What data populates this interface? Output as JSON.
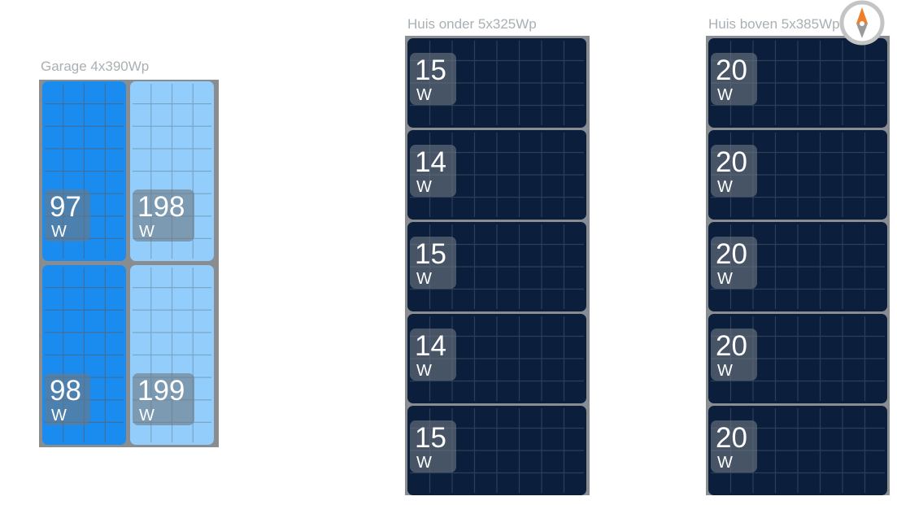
{
  "groups": [
    {
      "title": "Garage 4x390Wp",
      "panels": [
        {
          "value": 97,
          "unit": "W"
        },
        {
          "value": 198,
          "unit": "W"
        },
        {
          "value": 98,
          "unit": "W"
        },
        {
          "value": 199,
          "unit": "W"
        }
      ]
    },
    {
      "title": "Huis onder 5x325Wp",
      "panels": [
        {
          "value": 15,
          "unit": "W"
        },
        {
          "value": 14,
          "unit": "W"
        },
        {
          "value": 15,
          "unit": "W"
        },
        {
          "value": 14,
          "unit": "W"
        },
        {
          "value": 15,
          "unit": "W"
        }
      ]
    },
    {
      "title": "Huis boven 5x385Wp",
      "panels": [
        {
          "value": 20,
          "unit": "W"
        },
        {
          "value": 20,
          "unit": "W"
        },
        {
          "value": 20,
          "unit": "W"
        },
        {
          "value": 20,
          "unit": "W"
        },
        {
          "value": 20,
          "unit": "W"
        }
      ]
    }
  ]
}
